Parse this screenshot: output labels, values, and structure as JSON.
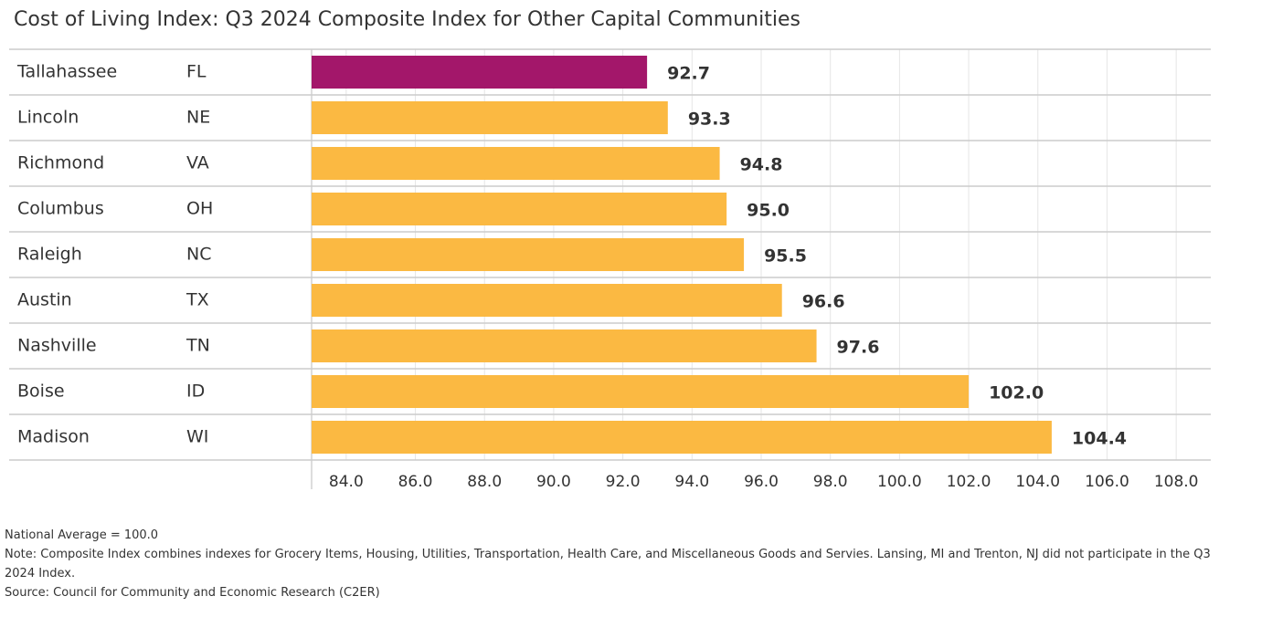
{
  "chart_data": {
    "type": "bar",
    "orientation": "horizontal",
    "title": "Cost of Living Index: Q3 2024 Composite Index for Other Capital Communities",
    "categories": [
      "Tallahassee",
      "Lincoln",
      "Richmond",
      "Columbus",
      "Raleigh",
      "Austin",
      "Nashville",
      "Boise",
      "Madison"
    ],
    "states": [
      "FL",
      "NE",
      "VA",
      "OH",
      "NC",
      "TX",
      "TN",
      "ID",
      "WI"
    ],
    "values": [
      92.7,
      93.3,
      94.8,
      95.0,
      95.5,
      96.6,
      97.6,
      102.0,
      104.4
    ],
    "value_labels": [
      "92.7",
      "93.3",
      "94.8",
      "95.0",
      "95.5",
      "96.6",
      "97.6",
      "102.0",
      "104.4"
    ],
    "colors": [
      "#a3176a",
      "#fbb942",
      "#fbb942",
      "#fbb942",
      "#fbb942",
      "#fbb942",
      "#fbb942",
      "#fbb942",
      "#fbb942"
    ],
    "xlim": [
      83,
      109
    ],
    "xticks": [
      {
        "value": 84,
        "label": "84.0"
      },
      {
        "value": 86,
        "label": "86.0"
      },
      {
        "value": 88,
        "label": "88.0"
      },
      {
        "value": 90,
        "label": "90.0"
      },
      {
        "value": 92,
        "label": "92.0"
      },
      {
        "value": 94,
        "label": "94.0"
      },
      {
        "value": 96,
        "label": "96.0"
      },
      {
        "value": 98,
        "label": "98.0"
      },
      {
        "value": 100,
        "label": "100.0"
      },
      {
        "value": 102,
        "label": "102.0"
      },
      {
        "value": 104,
        "label": "104.0"
      },
      {
        "value": 106,
        "label": "106.0"
      },
      {
        "value": 108,
        "label": "108.0"
      }
    ],
    "grid": true,
    "notes": [
      "National Average = 100.0",
      "Note: Composite Index combines indexes for Grocery Items, Housing, Utilities, Transportation, Health Care, and Miscellaneous Goods and Servies. Lansing, MI and Trenton, NJ did not participate in the Q3 2024 Index.",
      "Source: Council for Community and Economic Research (C2ER)"
    ]
  }
}
